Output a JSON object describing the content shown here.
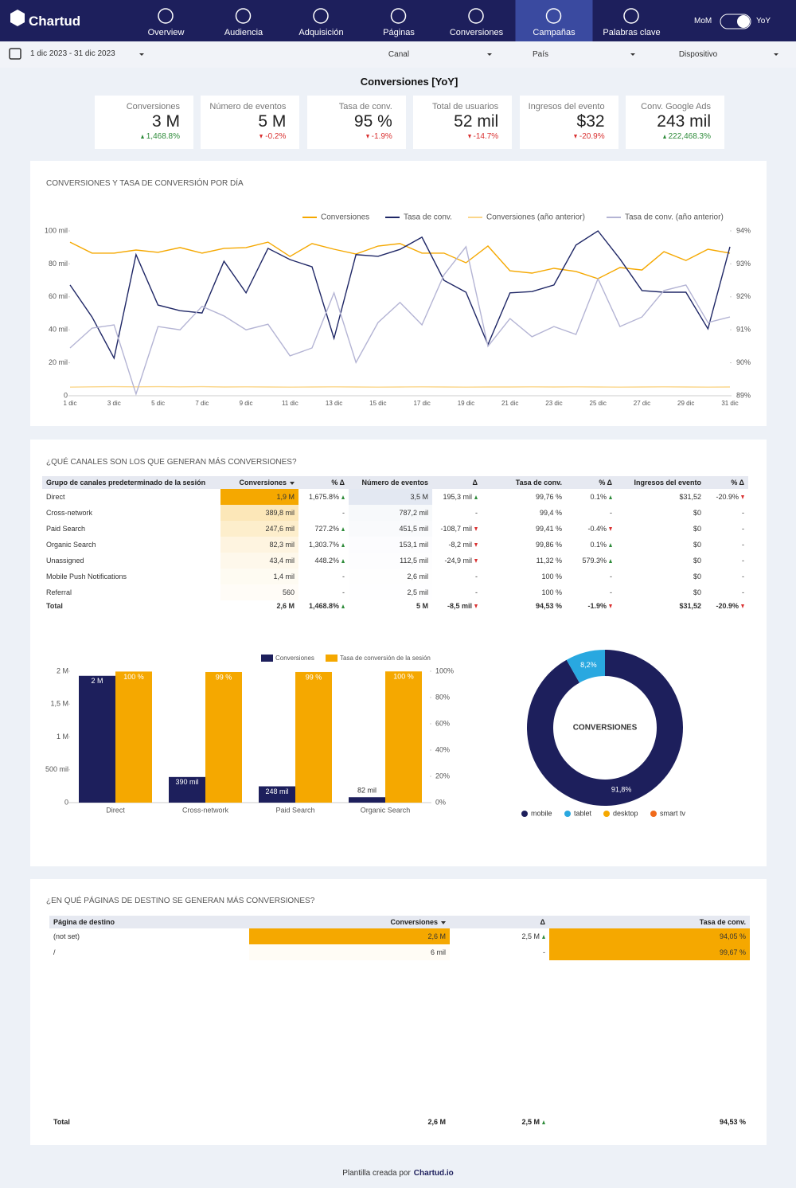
{
  "nav": {
    "logo": "Chartud",
    "items": [
      "Overview",
      "Audiencia",
      "Adquisición",
      "Páginas",
      "Conversiones",
      "Campañas",
      "Palabras clave"
    ],
    "toggle": [
      "MoM",
      "YoY"
    ]
  },
  "filters": {
    "date": "1 dic 2023 - 31 dic 2023",
    "fields": [
      "Canal",
      "País",
      "Dispositivo"
    ]
  },
  "header": {
    "title": "Conversiones [YoY]"
  },
  "kpis": [
    {
      "label": "Conversiones",
      "value": "3 M",
      "delta": "1,468.8%"
    },
    {
      "label": "Número de eventos",
      "value": "5 M",
      "delta": "-0.2%"
    },
    {
      "label": "Tasa de conv.",
      "value": "95 %",
      "delta": "-1.9%"
    },
    {
      "label": "Total de usuarios",
      "value": "52 mil",
      "delta": "-14.7%"
    },
    {
      "label": "Ingresos del evento",
      "value": "$32",
      "delta": "-20.9%"
    },
    {
      "label": "Conv. Google Ads",
      "value": "243 mil",
      "delta": "222,468.3%"
    }
  ],
  "sections": [
    "¿QUÉ CANALES SON LOS QUE GENERAN MÁS CONVERSIONES?",
    "¿EN QUÉ PÁGINAS DE DESTINO SE GENERAN MÁS CONVERSIONES?"
  ],
  "channel_table": {
    "headers": [
      "Grupo de canales predeterminado de la sesión",
      "Conversiones",
      "% Δ",
      "Número de eventos",
      "Δ",
      "Tasa de conv.",
      "% Δ",
      "Ingresos del evento",
      "% Δ"
    ],
    "rows": [
      [
        "Direct",
        "1,9 M",
        "1,675.8%",
        "3,5 M",
        "195,3 mil",
        "99,76 %",
        "0.1%",
        "$31,52",
        "-20.9%"
      ],
      [
        "Cross-network",
        "389,8 mil",
        "-",
        "787,2 mil",
        "-",
        "99,4 %",
        "-",
        "$0",
        "-"
      ],
      [
        "Paid Search",
        "247,6 mil",
        "727.2%",
        "451,5 mil",
        "-108,7 mil",
        "99,41 %",
        "-0.4%",
        "$0",
        "-"
      ],
      [
        "Organic Search",
        "82,3 mil",
        "1,303.7%",
        "153,1 mil",
        "-8,2 mil",
        "99,86 %",
        "0.1%",
        "$0",
        "-"
      ],
      [
        "Unassigned",
        "43,4 mil",
        "448.2%",
        "112,5 mil",
        "-24,9 mil",
        "11,32 %",
        "579.3%",
        "$0",
        "-"
      ],
      [
        "Mobile Push Notifications",
        "1,4 mil",
        "-",
        "2,6 mil",
        "-",
        "100 %",
        "-",
        "$0",
        "-"
      ],
      [
        "Referral",
        "560",
        "-",
        "2,5 mil",
        "-",
        "100 %",
        "-",
        "$0",
        "-"
      ]
    ],
    "total": [
      "Total",
      "2,6 M",
      "1,468.8%",
      "5 M",
      "-8,5 mil",
      "94,53 %",
      "-1.9%",
      "$31,52",
      "-20.9%"
    ]
  },
  "landing_table": {
    "headers": [
      "Página de destino",
      "Conversiones",
      "Δ",
      "Tasa de conv."
    ],
    "rows": [
      [
        "(not set)",
        "2,6 M",
        "2,5 M",
        "94,05 %"
      ],
      [
        "/",
        "6 mil",
        "-",
        "99,67 %"
      ]
    ],
    "total": [
      "Total",
      "2,6 M",
      "2,5 M",
      "94,53 %"
    ]
  },
  "footer": {
    "text": "Plantilla creada por",
    "link": "Chartud.io"
  },
  "chart_data": [
    {
      "type": "line",
      "title": "CONVERSIONES Y TASA DE CONVERSIÓN POR DÍA",
      "categories": [
        "1 dic",
        null,
        "3 dic",
        null,
        "5 dic",
        null,
        "7 dic",
        null,
        "9 dic",
        null,
        "11 dic",
        null,
        "13 dic",
        null,
        "15 dic",
        null,
        "17 dic",
        null,
        "19 dic",
        null,
        "21 dic",
        null,
        "23 dic",
        null,
        "25 dic",
        null,
        "27 dic",
        null,
        "29 dic",
        null,
        "31 dic"
      ],
      "series": [
        {
          "name": "Conversiones",
          "color": "#f5a800",
          "values": [
            93200,
            86500,
            86500,
            88400,
            87000,
            89900,
            86500,
            89400,
            89900,
            93200,
            84500,
            92300,
            88900,
            86000,
            90800,
            92300,
            86500,
            86500,
            80700,
            90800,
            75800,
            74400,
            77300,
            75400,
            71000,
            77800,
            76300,
            87400,
            82100,
            88900,
            86500
          ]
        },
        {
          "name": "Tasa de conv.",
          "color": "#1f2766",
          "axis": "y2",
          "values": [
            92.36,
            91.39,
            90.14,
            93.28,
            91.75,
            91.58,
            91.51,
            93.08,
            92.12,
            93.47,
            93.13,
            92.91,
            90.74,
            93.28,
            93.23,
            93.44,
            93.81,
            92.5,
            92.14,
            90.55,
            92.12,
            92.16,
            92.36,
            93.57,
            94.0,
            93.15,
            92.19,
            92.14,
            92.14,
            91.03,
            93.52
          ]
        },
        {
          "name": "Conversiones (año anterior)",
          "color": "#fbd68a",
          "values": [
            5200,
            5400,
            5500,
            5400,
            5500,
            5400,
            5500,
            5300,
            5400,
            5300,
            5200,
            5300,
            5400,
            5300,
            5200,
            5300,
            5400,
            5300,
            5200,
            5300,
            5300,
            5400,
            5300,
            5400,
            5300,
            5200,
            5300,
            5400,
            5300,
            5200,
            5300
          ]
        },
        {
          "name": "Tasa de conv. (año anterior)",
          "color": "#b4b4d4",
          "axis": "y2",
          "values": [
            90.45,
            91.05,
            91.15,
            89.05,
            91.1,
            91.0,
            91.71,
            91.42,
            91.0,
            91.17,
            90.21,
            90.45,
            92.12,
            90.01,
            91.22,
            91.83,
            91.15,
            92.67,
            93.52,
            90.5,
            91.34,
            90.79,
            91.1,
            90.86,
            92.55,
            91.1,
            91.39,
            92.19,
            92.36,
            91.22,
            91.39
          ]
        }
      ],
      "ylim": [
        0,
        100000
      ],
      "yticks": [
        0,
        {
          "value": 20000,
          "label": "20 mil"
        },
        {
          "value": 40000,
          "label": "40 mil"
        },
        {
          "value": 60000,
          "label": "60 mil"
        },
        {
          "value": 80000,
          "label": "80 mil"
        },
        {
          "value": 100000,
          "label": "100 mil"
        }
      ],
      "y2lim": [
        89,
        94
      ],
      "y2ticks": [
        {
          "value": 89,
          "label": "89%"
        },
        {
          "value": 90,
          "label": "90%"
        },
        {
          "value": 91,
          "label": "91%"
        },
        {
          "value": 92,
          "label": "92%"
        },
        {
          "value": 93,
          "label": "93%"
        },
        {
          "value": 94,
          "label": "94%"
        }
      ],
      "grid": false,
      "legend": "top-right"
    },
    {
      "type": "bar",
      "categories": [
        "Direct",
        "Cross-network",
        "Paid Search",
        "Organic Search"
      ],
      "series": [
        {
          "name": "Conversiones",
          "color": "#1d1f5c",
          "values": [
            1930000,
            390000,
            248000,
            82000
          ],
          "value_labels": [
            "2 M",
            "390 mil",
            "248 mil",
            "82 mil"
          ]
        },
        {
          "name": "Tasa de conversión de la sesión",
          "color": "#f5a800",
          "axis": "y2",
          "values": [
            99.76,
            99.4,
            99.41,
            99.86
          ],
          "value_labels": [
            "100 %",
            "99 %",
            "99 %",
            "100 %"
          ]
        }
      ],
      "ylim": [
        0,
        2000000
      ],
      "yticks": [
        0,
        {
          "value": 500000,
          "label": "500 mil"
        },
        {
          "value": 1000000,
          "label": "1 M"
        },
        {
          "value": 1500000,
          "label": "1,5 M"
        },
        {
          "value": 2000000,
          "label": "2 M"
        }
      ],
      "y2lim": [
        0,
        100
      ],
      "y2ticks": [
        {
          "value": 0,
          "label": "0%"
        },
        {
          "value": 20,
          "label": "20%"
        },
        {
          "value": 40,
          "label": "40%"
        },
        {
          "value": 60,
          "label": "60%"
        },
        {
          "value": 80,
          "label": "80%"
        },
        {
          "value": 100,
          "label": "100%"
        }
      ],
      "grid": false,
      "legend": "top"
    },
    {
      "type": "pie",
      "title": "CONVERSIONES",
      "categories": [
        "mobile",
        "tablet",
        "desktop",
        "smart tv"
      ],
      "values": [
        91.8,
        8.2,
        0,
        0
      ],
      "value_labels": [
        "91,8%",
        "8,2%",
        null,
        null
      ],
      "colors": [
        "#1d1f5c",
        "#29a8e0",
        "#f5a800",
        "#f06a1b"
      ],
      "legend": "bottom"
    }
  ]
}
